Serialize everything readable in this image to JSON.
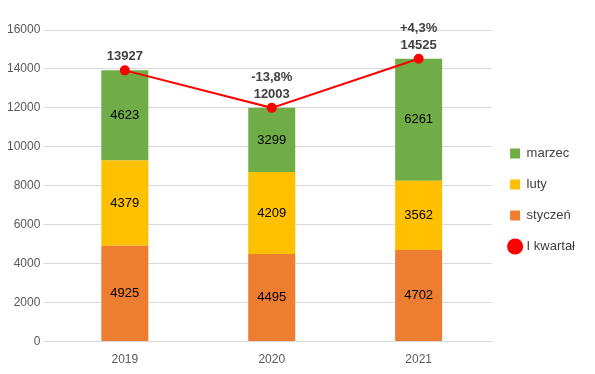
{
  "chart_data": {
    "type": "bar",
    "stacked": true,
    "data_labels": true,
    "grid": true,
    "legend": "right",
    "categories": [
      "2019",
      "2020",
      "2021"
    ],
    "series": [
      {
        "name": "styczeń",
        "color": "#ed7d31",
        "values": [
          4925,
          4495,
          4702
        ]
      },
      {
        "name": "luty",
        "color": "#ffc000",
        "values": [
          4379,
          4209,
          3562
        ]
      },
      {
        "name": "marzec",
        "color": "#70ad47",
        "values": [
          4623,
          3299,
          6261
        ]
      },
      {
        "name": "I kwartał",
        "type": "line",
        "color": "#ff0000",
        "marker": "circle",
        "line_style": "solid",
        "values": [
          13927,
          12003,
          14525
        ]
      }
    ],
    "annotations": [
      {
        "category": "2020",
        "text": "-13,8%"
      },
      {
        "category": "2021",
        "text": "+4,3%"
      }
    ],
    "ylim": [
      0,
      16000
    ],
    "yticks": [
      0,
      2000,
      4000,
      6000,
      8000,
      10000,
      12000,
      14000,
      16000
    ]
  }
}
